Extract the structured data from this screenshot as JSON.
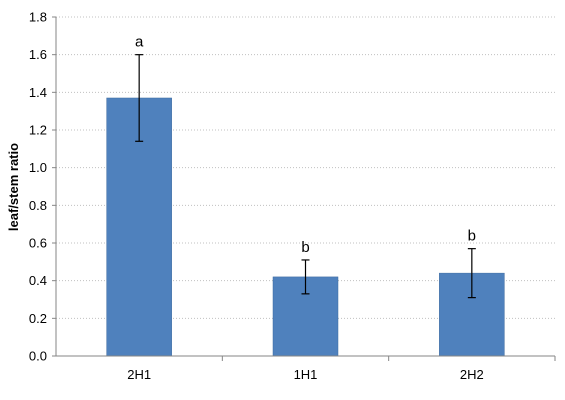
{
  "chart_data": {
    "type": "bar",
    "title": "",
    "xlabel": "",
    "ylabel": "leaf/stem ratio",
    "categories": [
      "2H1",
      "1H1",
      "2H2"
    ],
    "values": [
      1.37,
      0.42,
      0.44
    ],
    "error": [
      0.23,
      0.09,
      0.13
    ],
    "annotations": [
      "a",
      "b",
      "b"
    ],
    "ylim": [
      0,
      1.8
    ],
    "yticks": [
      0.0,
      0.2,
      0.4,
      0.6,
      0.8,
      1.0,
      1.2,
      1.4,
      1.6,
      1.8
    ],
    "ytick_labels": [
      "0.0",
      "0.2",
      "0.4",
      "0.6",
      "0.8",
      "1.0",
      "1.2",
      "1.4",
      "1.6",
      "1.8"
    ],
    "grid": true,
    "legend": "none",
    "colors": {
      "bar": "#4f81bd",
      "bar_border": "#3c6a9f",
      "grid": "#c0c0c0",
      "axis": "#868686",
      "error_bar": "#000000"
    }
  }
}
